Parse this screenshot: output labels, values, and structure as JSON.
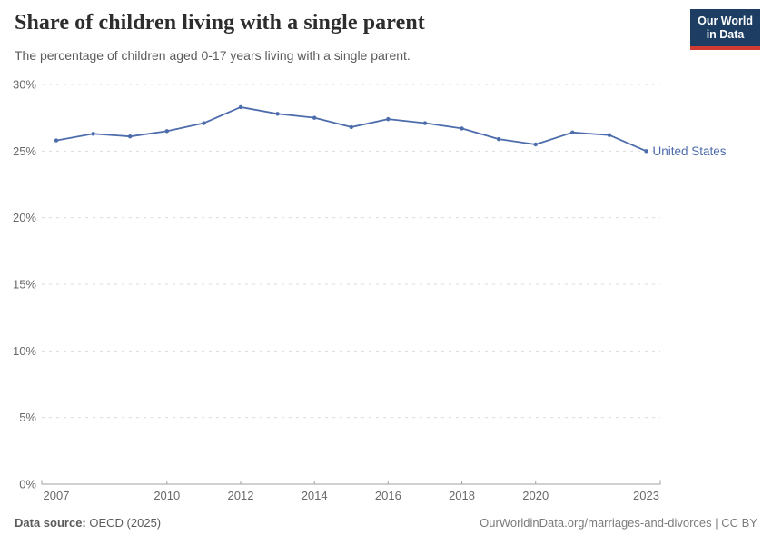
{
  "header": {
    "title": "Share of children living with a single parent",
    "subtitle": "The percentage of children aged 0-17 years living with a single parent."
  },
  "logo": {
    "line1": "Our World",
    "line2": "in Data"
  },
  "footer": {
    "source_label": "Data source:",
    "source_value": "OECD (2025)",
    "credit": "OurWorldinData.org/marriages-and-divorces | CC BY"
  },
  "chart_data": {
    "type": "line",
    "title": "Share of children living with a single parent",
    "xlabel": "",
    "ylabel": "",
    "x": [
      2007,
      2008,
      2009,
      2010,
      2011,
      2012,
      2013,
      2014,
      2015,
      2016,
      2017,
      2018,
      2019,
      2020,
      2021,
      2022,
      2023
    ],
    "series": [
      {
        "name": "United States",
        "color": "#4d6cab",
        "values": [
          25.8,
          26.3,
          26.1,
          26.5,
          27.1,
          28.3,
          27.8,
          27.5,
          26.8,
          27.4,
          27.1,
          26.7,
          25.9,
          25.5,
          26.4,
          26.2,
          25.0
        ]
      }
    ],
    "xlim": [
      2007,
      2023
    ],
    "ylim": [
      0,
      30
    ],
    "yticks": [
      0,
      5,
      10,
      15,
      20,
      25,
      30
    ],
    "ytick_suffix": "%",
    "xticks": [
      2007,
      2010,
      2012,
      2014,
      2016,
      2018,
      2020,
      2023
    ],
    "grid": "horizontal-dashed",
    "legend_position": "end-of-line"
  },
  "colors": {
    "logo_navy": "#1d3d63",
    "logo_red": "#cf3a31",
    "gridline": "#dcdcdc",
    "axis": "#a2a2a2",
    "tick_label": "#696969",
    "series_blue": "#4d6cab"
  }
}
